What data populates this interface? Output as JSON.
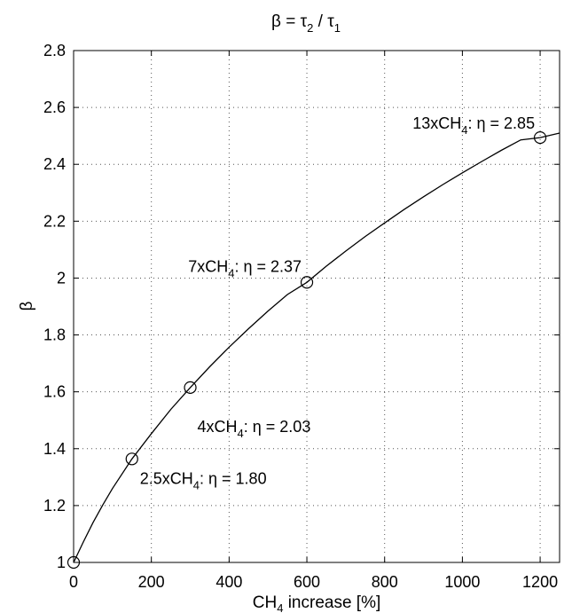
{
  "chart_data": {
    "type": "line",
    "title": {
      "pre": "β = τ",
      "s1": "2",
      "mid": " / τ",
      "s2": "1"
    },
    "xlabel": {
      "pre": "CH",
      "sub": "4",
      "post": " increase [%]"
    },
    "ylabel": "β",
    "xlim": [
      0,
      1250
    ],
    "ylim": [
      1,
      2.8
    ],
    "xticks": [
      0,
      200,
      400,
      600,
      800,
      1000,
      1200
    ],
    "yticks": [
      1,
      1.2,
      1.4,
      1.6,
      1.8,
      2,
      2.2,
      2.4,
      2.6,
      2.8
    ],
    "xtick_labels": [
      "0",
      "200",
      "400",
      "600",
      "800",
      "1000",
      "1200"
    ],
    "ytick_labels": [
      "1",
      "1.2",
      "1.4",
      "1.6",
      "1.8",
      "2",
      "2.2",
      "2.4",
      "2.6",
      "2.8"
    ],
    "grid": true,
    "curve": {
      "x": [
        0,
        25,
        50,
        75,
        100,
        150,
        200,
        250,
        300,
        350,
        400,
        450,
        500,
        550,
        600,
        650,
        700,
        750,
        800,
        850,
        900,
        950,
        1000,
        1050,
        1100,
        1150,
        1200,
        1250
      ],
      "y": [
        1.0,
        1.072,
        1.14,
        1.202,
        1.26,
        1.364,
        1.453,
        1.538,
        1.615,
        1.688,
        1.757,
        1.822,
        1.884,
        1.942,
        1.985,
        2.042,
        2.095,
        2.146,
        2.194,
        2.241,
        2.286,
        2.329,
        2.37,
        2.41,
        2.449,
        2.486,
        2.494,
        2.51
      ]
    },
    "markers": {
      "x": [
        0,
        150,
        300,
        600,
        1200
      ],
      "y": [
        1.0,
        1.364,
        1.615,
        1.985,
        2.494
      ]
    },
    "annotations": [
      {
        "pre": "2.5xCH",
        "sub": "4",
        "post": ": η = 1.80",
        "x": 150,
        "y": 1.364
      },
      {
        "pre": "4xCH",
        "sub": "4",
        "post": ": η = 2.03",
        "x": 300,
        "y": 1.615
      },
      {
        "pre": "7xCH",
        "sub": "4",
        "post": ": η = 2.37",
        "x": 600,
        "y": 1.985
      },
      {
        "pre": "13xCH",
        "sub": "4",
        "post": ": η = 2.85",
        "x": 1200,
        "y": 2.494
      }
    ]
  }
}
